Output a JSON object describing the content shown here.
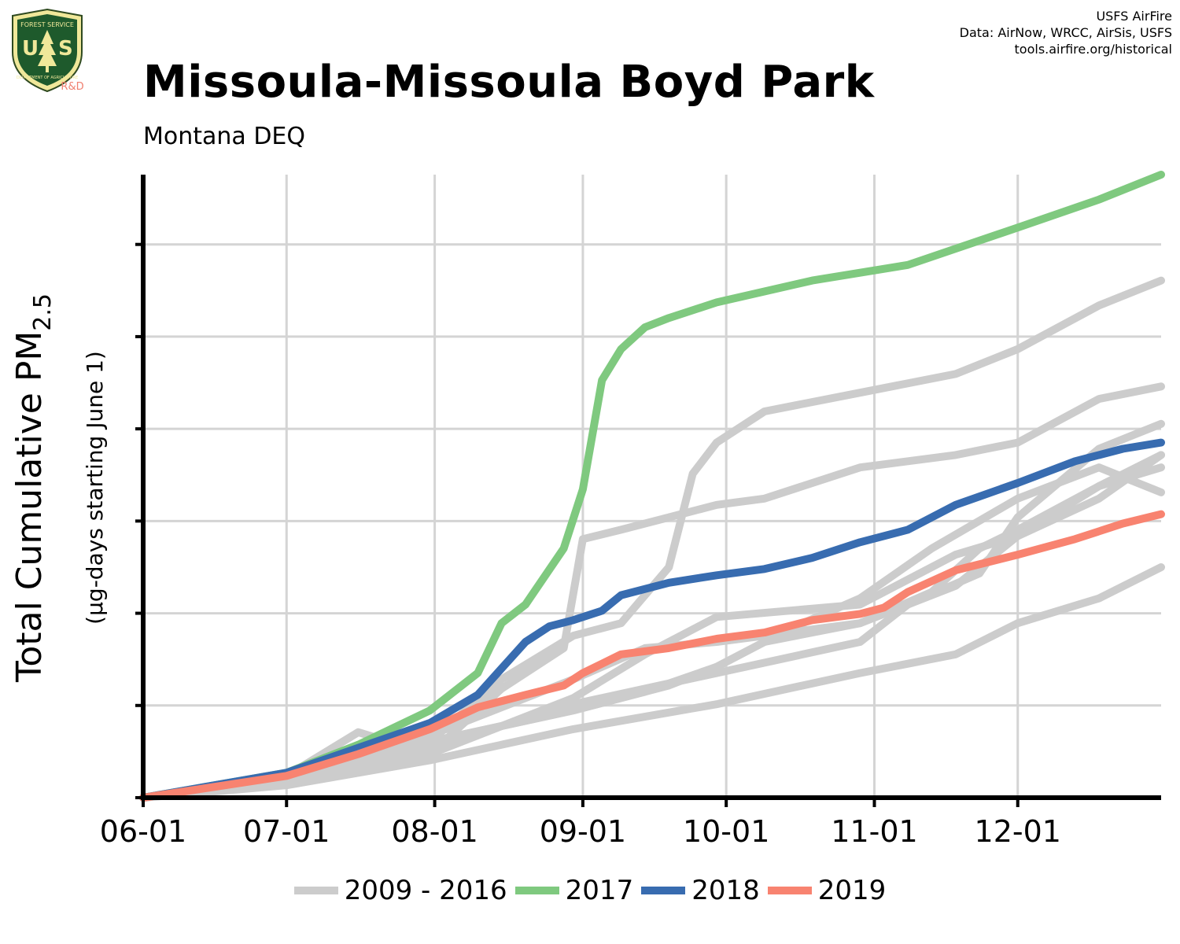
{
  "logo": {
    "agency": "FOREST SERVICE",
    "letters": "US",
    "department": "DEPARTMENT OF AGRICULTURE",
    "rd": "R&D"
  },
  "credits": {
    "line1": "USFS AirFire",
    "line2": "Data: AirNow, WRCC, AirSis, USFS",
    "line3": "tools.airfire.org/historical"
  },
  "title": "Missoula-Missoula Boyd Park",
  "subtitle": "Montana DEQ",
  "chart_data": {
    "type": "line",
    "title": "Missoula-Missoula Boyd Park",
    "subtitle": "Montana DEQ",
    "ylabel_main": "Total Cumulative PM",
    "ylabel_sub": "2.5",
    "ylabel_units": "(µg-days starting June 1)",
    "y_tick_labels_shown": false,
    "y_units": "axis fraction (0 = origin, 1 = top of axis; no tick values printed)",
    "ylim": [
      0,
      1
    ],
    "x_tick_labels": [
      "06-01",
      "07-01",
      "08-01",
      "09-01",
      "10-01",
      "11-01",
      "12-01"
    ],
    "x_tick_days": [
      0,
      30,
      61,
      92,
      122,
      153,
      183
    ],
    "xlim": [
      0,
      213
    ],
    "y_gridlines": [
      0.148,
      0.296,
      0.444,
      0.592,
      0.74,
      0.888
    ],
    "grid": true,
    "legend": "bottom",
    "series": [
      {
        "name": "2009 - 2016",
        "color": "#cccccc",
        "x": [
          0,
          30,
          45,
          60,
          75,
          88,
          92,
          100,
          110,
          120,
          130,
          150,
          170,
          183,
          200,
          213
        ],
        "y": [
          0,
          0.035,
          0.105,
          0.07,
          0.175,
          0.24,
          0.415,
          0.43,
          0.45,
          0.47,
          0.48,
          0.53,
          0.55,
          0.57,
          0.64,
          0.66
        ]
      },
      {
        "name": "",
        "color": "#cccccc",
        "x": [
          0,
          30,
          45,
          60,
          75,
          90,
          100,
          110,
          115,
          120,
          130,
          150,
          170,
          183,
          200,
          213
        ],
        "y": [
          0,
          0.03,
          0.07,
          0.09,
          0.19,
          0.26,
          0.28,
          0.37,
          0.52,
          0.57,
          0.62,
          0.65,
          0.68,
          0.72,
          0.79,
          0.83
        ]
      },
      {
        "name": "",
        "color": "#cccccc",
        "x": [
          0,
          30,
          60,
          90,
          110,
          120,
          130,
          150,
          165,
          175,
          183,
          200,
          213
        ],
        "y": [
          0,
          0.03,
          0.09,
          0.14,
          0.18,
          0.21,
          0.25,
          0.28,
          0.33,
          0.4,
          0.43,
          0.5,
          0.53
        ]
      },
      {
        "name": "",
        "color": "#cccccc",
        "x": [
          0,
          30,
          60,
          90,
          120,
          150,
          160,
          175,
          183,
          200,
          213
        ],
        "y": [
          0,
          0.03,
          0.08,
          0.15,
          0.2,
          0.25,
          0.31,
          0.36,
          0.45,
          0.56,
          0.6
        ]
      },
      {
        "name": "",
        "color": "#cccccc",
        "x": [
          0,
          30,
          60,
          90,
          105,
          120,
          150,
          170,
          183,
          200,
          213
        ],
        "y": [
          0,
          0.03,
          0.1,
          0.19,
          0.24,
          0.25,
          0.28,
          0.34,
          0.42,
          0.5,
          0.55
        ]
      },
      {
        "name": "",
        "color": "#cccccc",
        "x": [
          0,
          30,
          60,
          90,
          105,
          120,
          150,
          170,
          183,
          200,
          213
        ],
        "y": [
          0,
          0.03,
          0.07,
          0.16,
          0.23,
          0.29,
          0.31,
          0.39,
          0.42,
          0.48,
          0.55
        ]
      },
      {
        "name": "",
        "color": "#cccccc",
        "x": [
          0,
          30,
          60,
          90,
          105,
          120,
          135,
          150,
          165,
          183,
          200,
          213
        ],
        "y": [
          0,
          0.03,
          0.09,
          0.14,
          0.17,
          0.21,
          0.27,
          0.32,
          0.4,
          0.48,
          0.53,
          0.49
        ]
      },
      {
        "name": "",
        "color": "#cccccc",
        "x": [
          0,
          30,
          60,
          90,
          120,
          150,
          170,
          183,
          200,
          213
        ],
        "y": [
          0,
          0.02,
          0.06,
          0.11,
          0.15,
          0.2,
          0.23,
          0.28,
          0.32,
          0.37
        ]
      },
      {
        "name": "2017",
        "color": "#7fc97f",
        "x": [
          0,
          30,
          45,
          60,
          70,
          75,
          80,
          88,
          92,
          96,
          100,
          105,
          110,
          120,
          140,
          160,
          183,
          200,
          213
        ],
        "y": [
          0,
          0.04,
          0.085,
          0.14,
          0.2,
          0.28,
          0.31,
          0.4,
          0.495,
          0.67,
          0.72,
          0.755,
          0.77,
          0.795,
          0.83,
          0.855,
          0.915,
          0.96,
          1.0
        ]
      },
      {
        "name": "2018",
        "color": "#386cb0",
        "x": [
          0,
          30,
          60,
          70,
          80,
          85,
          90,
          96,
          100,
          110,
          120,
          130,
          140,
          150,
          160,
          170,
          183,
          195,
          205,
          213
        ],
        "y": [
          0,
          0.04,
          0.12,
          0.165,
          0.25,
          0.275,
          0.285,
          0.3,
          0.325,
          0.345,
          0.357,
          0.367,
          0.385,
          0.41,
          0.43,
          0.47,
          0.505,
          0.54,
          0.56,
          0.57
        ]
      },
      {
        "name": "2019",
        "color": "#f88370",
        "x": [
          0,
          30,
          45,
          60,
          70,
          80,
          88,
          92,
          100,
          110,
          120,
          130,
          140,
          150,
          155,
          160,
          170,
          183,
          195,
          205,
          213
        ],
        "y": [
          0,
          0.035,
          0.07,
          0.11,
          0.145,
          0.165,
          0.18,
          0.2,
          0.23,
          0.24,
          0.255,
          0.265,
          0.285,
          0.295,
          0.305,
          0.33,
          0.365,
          0.39,
          0.415,
          0.44,
          0.455
        ]
      }
    ]
  },
  "legend": [
    {
      "label": "2009 - 2016",
      "color": "#cccccc"
    },
    {
      "label": "2017",
      "color": "#7fc97f"
    },
    {
      "label": "2018",
      "color": "#386cb0"
    },
    {
      "label": "2019",
      "color": "#f88370"
    }
  ]
}
